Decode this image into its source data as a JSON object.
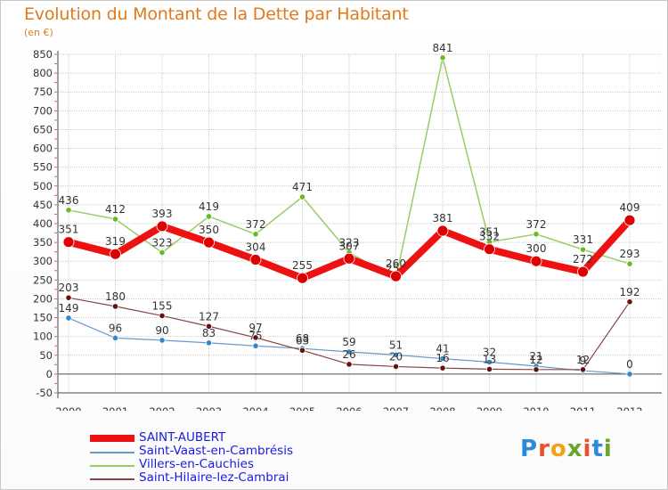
{
  "header": {
    "title": "Evolution du Montant de la Dette par Habitant",
    "unit": "(en €)"
  },
  "legend": [
    "SAINT-AUBERT",
    "Saint-Vaast-en-Cambrésis",
    "Villers-en-Cauchies",
    "Saint-Hilaire-lez-Cambrai"
  ],
  "brand": {
    "text": "Proxiti",
    "letters": [
      "P",
      "r",
      "o",
      "x",
      "i",
      "t",
      "i"
    ],
    "colors": [
      "#2d8ad7",
      "#e8522b",
      "#f0a21c",
      "#6aa52b",
      "#e8522b",
      "#2d8ad7",
      "#6aa52b"
    ]
  },
  "chart_data": {
    "type": "line",
    "title": "Evolution du Montant de la Dette par Habitant",
    "ylabel": "(en €)",
    "xlabel": "",
    "x": [
      "2000",
      "2001",
      "2002",
      "2003",
      "2004",
      "2005",
      "2006",
      "2007",
      "2008",
      "2009",
      "2010",
      "2011",
      "2012"
    ],
    "ylim": [
      -50,
      850
    ],
    "yticks": [
      -50,
      0,
      50,
      100,
      150,
      200,
      250,
      300,
      350,
      400,
      450,
      500,
      550,
      600,
      650,
      700,
      750,
      800,
      850
    ],
    "grid": true,
    "legend_position": "bottom-left",
    "series": [
      {
        "name": "Villers-en-Cauchies",
        "color": "#99cc66",
        "marker": "#66bb22",
        "width": 1.5,
        "r": 3.2,
        "values": [
          436,
          412,
          323,
          419,
          372,
          471,
          323,
          254,
          841,
          351,
          372,
          331,
          293
        ],
        "labels": [
          "436",
          "412",
          "323",
          "419",
          "372",
          "471",
          "323",
          "254",
          "841",
          "351",
          "372",
          "331",
          "293"
        ]
      },
      {
        "name": "Saint-Vaast-en-Cambrésis",
        "color": "#6699cc",
        "marker": "#3388cc",
        "width": 1.2,
        "r": 3.2,
        "values": [
          149,
          96,
          90,
          83,
          75,
          68,
          59,
          51,
          41,
          32,
          21,
          9,
          0
        ],
        "labels": [
          "149",
          "96",
          "90",
          "83",
          "75",
          "68",
          "59",
          "51",
          "41",
          "32",
          "21",
          "9",
          "0"
        ]
      },
      {
        "name": "Saint-Hilaire-lez-Cambrai",
        "color": "#884444",
        "marker": "#661111",
        "width": 1.2,
        "r": 3.2,
        "values": [
          203,
          180,
          155,
          127,
          97,
          63,
          26,
          20,
          16,
          13,
          12,
          12,
          192
        ],
        "labels": [
          "203",
          "180",
          "155",
          "127",
          "97",
          "63",
          "26",
          "20",
          "16",
          "13",
          "12",
          "12",
          "192"
        ]
      },
      {
        "name": "SAINT-AUBERT",
        "color": "#ee1111",
        "marker": "#dd0000",
        "width": 8,
        "r": 6,
        "values": [
          351,
          319,
          393,
          350,
          304,
          255,
          307,
          260,
          381,
          332,
          300,
          272,
          409
        ],
        "labels": [
          "351",
          "319",
          "393",
          "350",
          "304",
          "255",
          "307",
          "260",
          "381",
          "332",
          "300",
          "272",
          "409"
        ]
      }
    ]
  }
}
